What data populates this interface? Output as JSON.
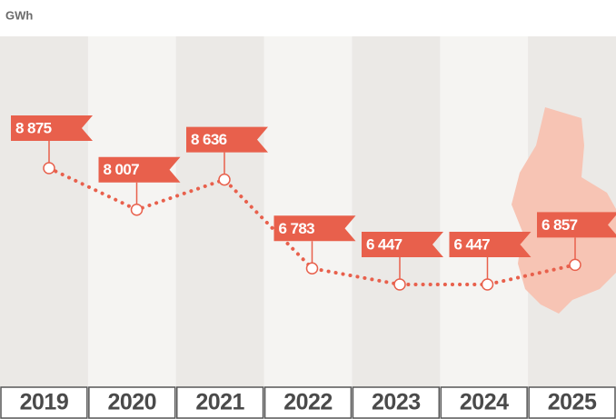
{
  "chart_data": {
    "type": "line",
    "y_label": "GWh",
    "categories": [
      "2019",
      "2020",
      "2021",
      "2022",
      "2023",
      "2024",
      "2025"
    ],
    "values": [
      8875,
      8007,
      8636,
      6783,
      6447,
      6447,
      6857
    ],
    "value_labels": [
      "8 875",
      "8 007",
      "8 636",
      "6 783",
      "6 447",
      "6 447",
      "6 857"
    ],
    "color": "#e8604c"
  }
}
